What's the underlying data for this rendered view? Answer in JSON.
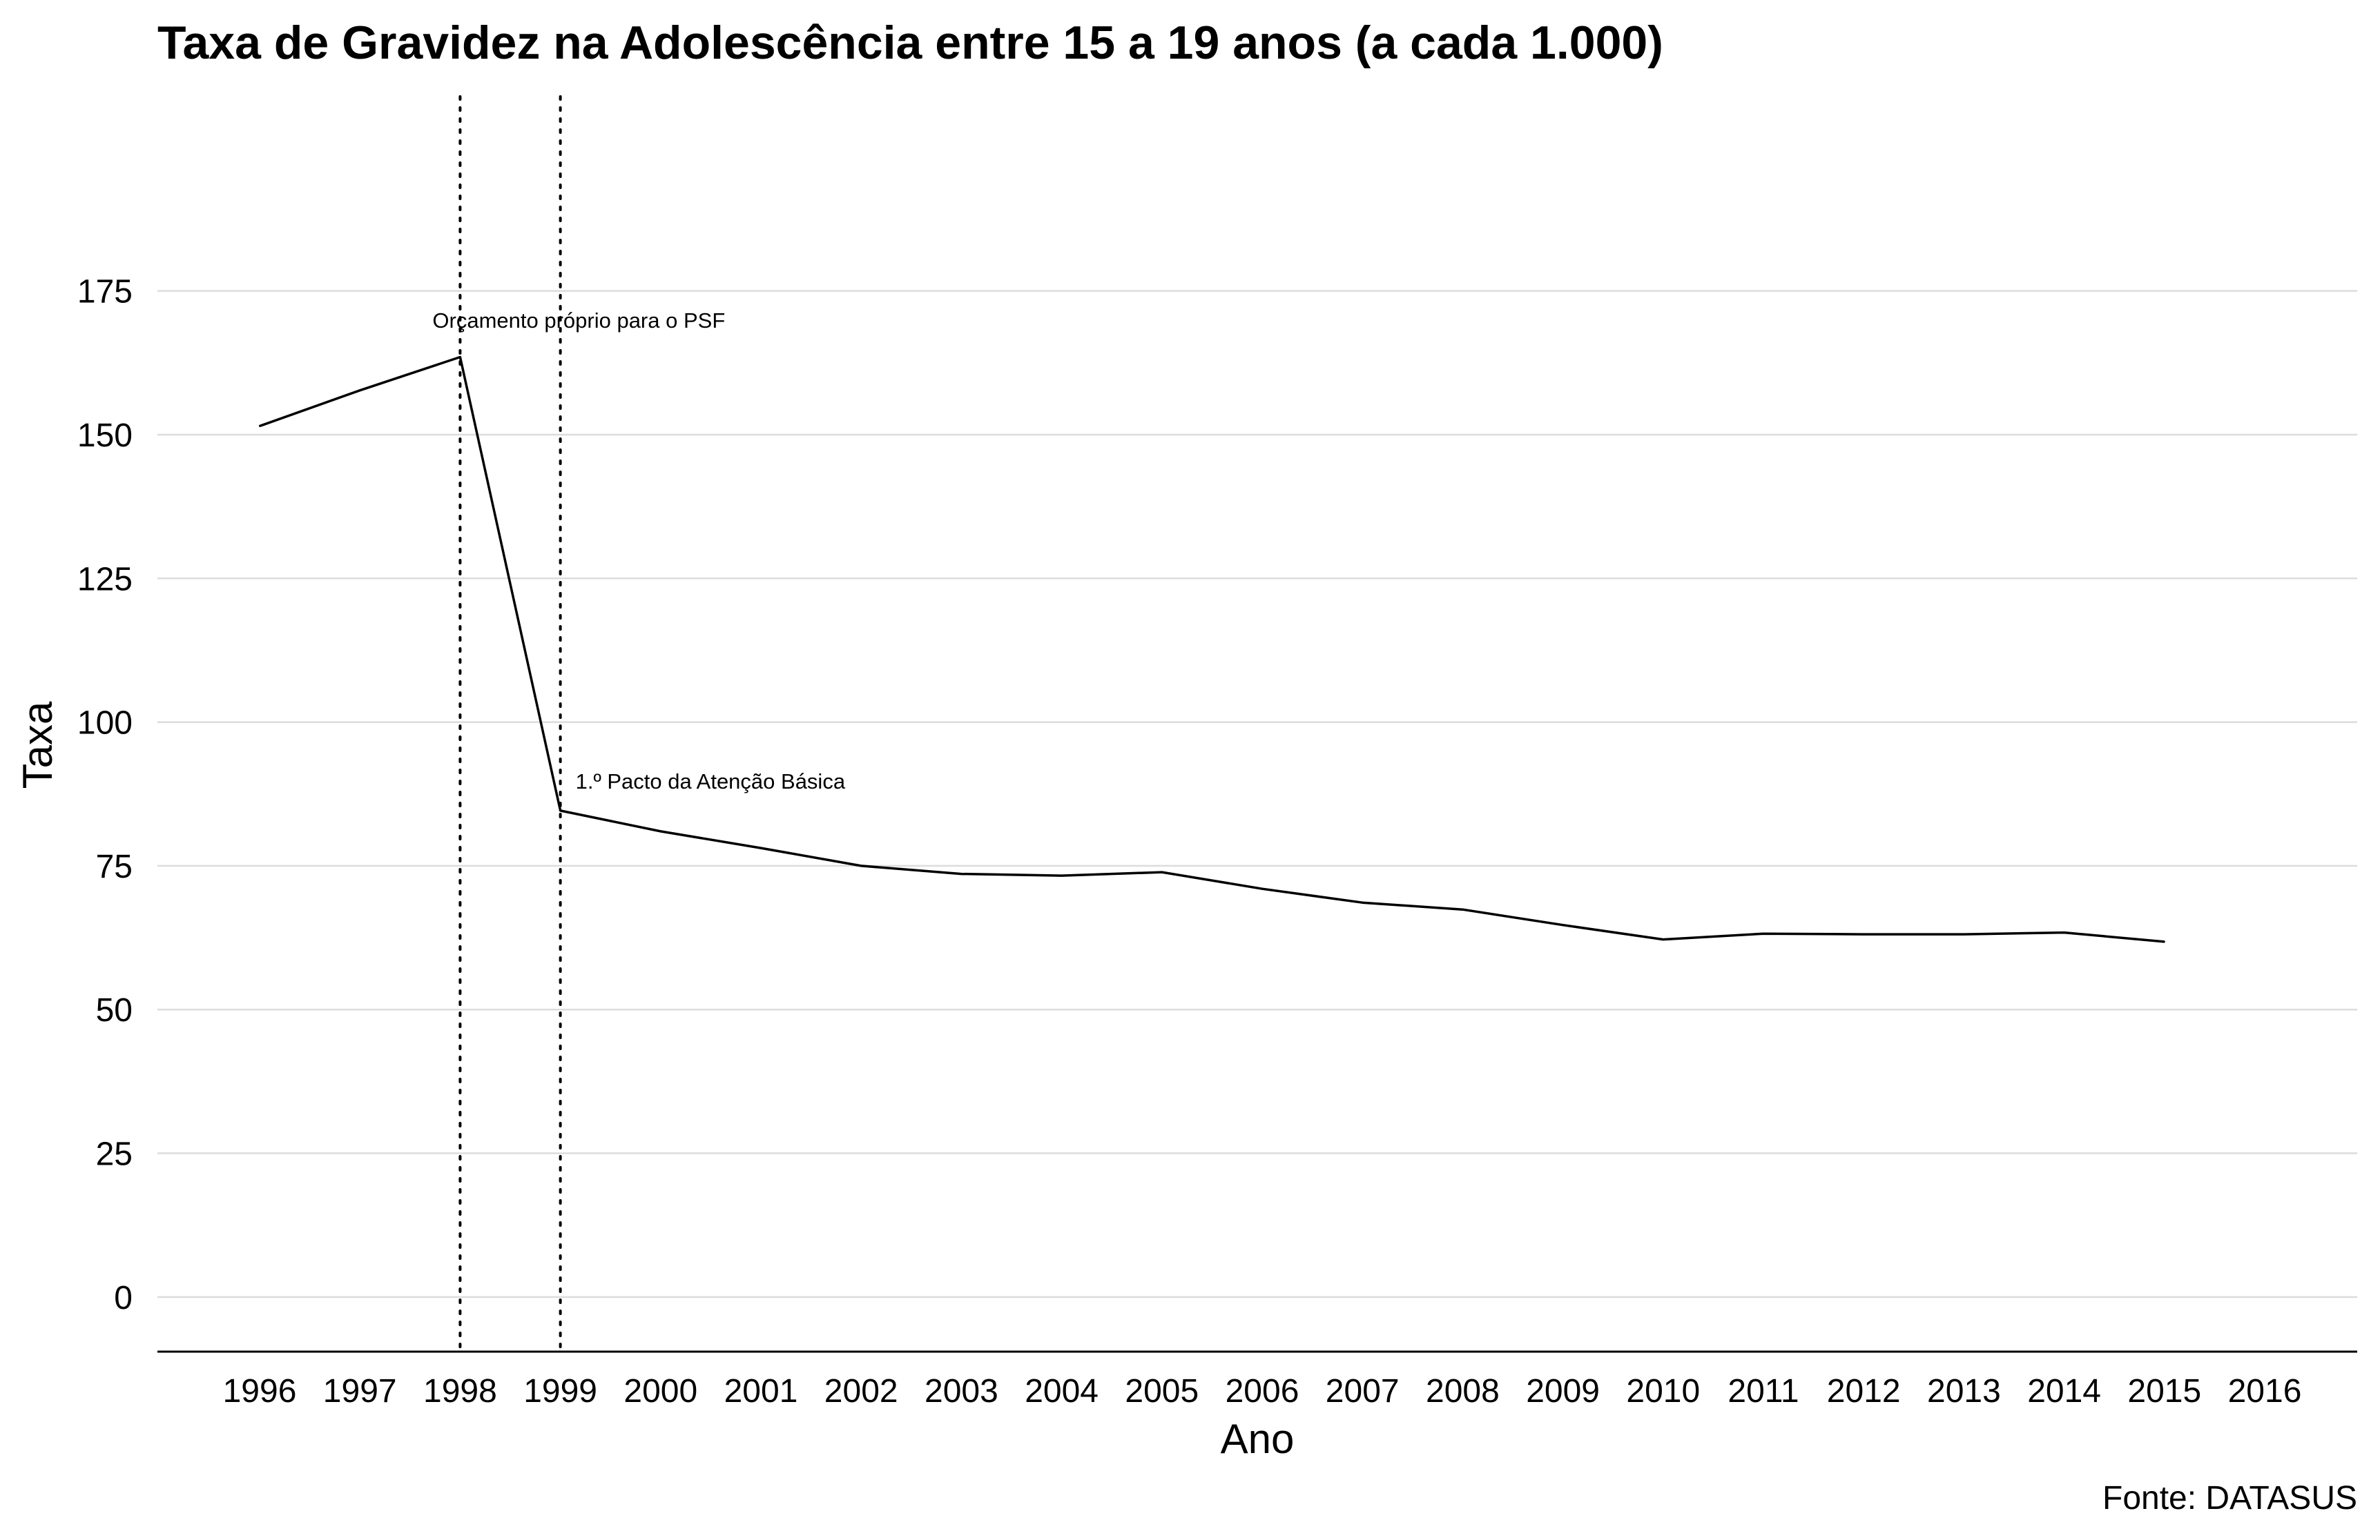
{
  "chart_data": {
    "type": "line",
    "title": "Taxa de Gravidez na Adolescência entre 15 a 19 anos (a cada 1.000)",
    "xlabel": "Ano",
    "ylabel": "Taxa",
    "caption": "Fonte: DATASUS",
    "categories": [
      "1996",
      "1997",
      "1998",
      "1999",
      "2000",
      "2001",
      "2002",
      "2003",
      "2004",
      "2005",
      "2006",
      "2007",
      "2008",
      "2009",
      "2010",
      "2011",
      "2012",
      "2013",
      "2014",
      "2015",
      "2016"
    ],
    "y_ticks": [
      0,
      25,
      50,
      75,
      100,
      125,
      150,
      175
    ],
    "ylim": [
      -9.5,
      210
    ],
    "grid": "horizontal",
    "series": [
      {
        "x": [
          "1996",
          "1997",
          "1998",
          "1999",
          "2000",
          "2001",
          "2002",
          "2003",
          "2004",
          "2005",
          "2006",
          "2007",
          "2008",
          "2009",
          "2010",
          "2011",
          "2012",
          "2013",
          "2014",
          "2015"
        ],
        "values": [
          151.5,
          157.7,
          163.5,
          84.6,
          81.0,
          78.1,
          75.0,
          73.6,
          73.3,
          73.9,
          71.0,
          68.6,
          67.4,
          64.7,
          62.2,
          63.2,
          63.1,
          63.1,
          63.4,
          61.8
        ]
      }
    ],
    "reference_lines": [
      {
        "x": "1998",
        "label": "Orçamento próprio para o PSF"
      },
      {
        "x": "1999",
        "label": "1.º Pacto da Atenção Básica"
      }
    ]
  }
}
